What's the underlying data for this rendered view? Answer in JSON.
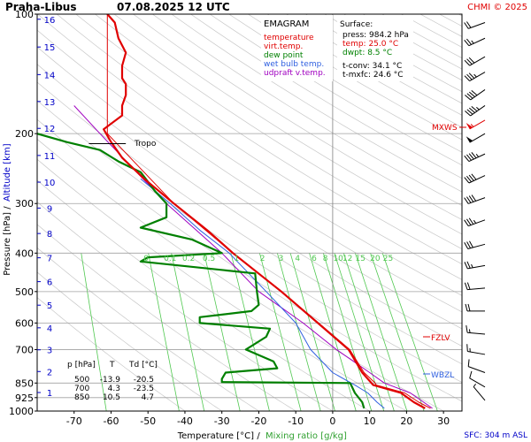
{
  "header": {
    "station": "Praha-Libus",
    "datetime": "07.08.2025 12 UTC",
    "credit": "CHMI © 2025"
  },
  "legend": {
    "title": "EMAGRAM",
    "items": [
      {
        "label": "temperature",
        "color": "#e00000"
      },
      {
        "label": "virt.temp.",
        "color": "#e00000"
      },
      {
        "label": "dew point",
        "color": "#008000"
      },
      {
        "label": "wet bulb temp.",
        "color": "#3060e0"
      },
      {
        "label": "udpraft v.temp.",
        "color": "#a000c0"
      }
    ]
  },
  "surface": {
    "title": "Surface:",
    "press": "press: 984.2 hPa",
    "temp": "temp: 25.0 °C",
    "dwpt": "dwpt: 8.5 °C",
    "tconv": "t-conv: 34.1 °C",
    "tmxfc": "t-mxfc: 24.6 °C"
  },
  "levels_table": {
    "headers": [
      "p [hPa]",
      "T",
      "Td [°C]"
    ],
    "rows": [
      [
        "500",
        "-13.9",
        "-20.5"
      ],
      [
        "700",
        "4.3",
        "-23.5"
      ],
      [
        "850",
        "10.5",
        "4.7"
      ]
    ]
  },
  "markers": {
    "tropo": "Tropo",
    "mxws": "MXWS",
    "fzlv": "FZLV",
    "wbzl": "WBZL"
  },
  "footer": {
    "sfc": "SFC: 304 m ASL"
  },
  "colors": {
    "temperature": "#e00000",
    "dewpoint": "#008000",
    "wetbulb": "#3060e0",
    "parcel": "#a000c0",
    "altitude": "#0000c8",
    "mixing": "#50c850"
  },
  "chart_data": {
    "type": "line",
    "xlabel": "Temperature [°C]",
    "xlabel_sep": "/",
    "xlabel2": "Mixing ratio [g/kg]",
    "ylabel": "Pressure [hPa]",
    "ylabel_sep": "/",
    "ylabel2": "Altitude [km]",
    "xlim": [
      -80,
      35
    ],
    "ylim": [
      1000,
      100
    ],
    "yscale": "log",
    "x_ticks": [
      "-70",
      "-60",
      "-50",
      "-40",
      "-30",
      "-20",
      "-10",
      "0",
      "10",
      "20",
      "30"
    ],
    "x_tick_values": [
      -70,
      -60,
      -50,
      -40,
      -30,
      -20,
      -10,
      0,
      10,
      20,
      30
    ],
    "pressure_ticks": [
      "100",
      "200",
      "300",
      "400",
      "500",
      "600",
      "700",
      "850",
      "925",
      "1000"
    ],
    "pressure_tick_values": [
      100,
      200,
      300,
      400,
      500,
      600,
      700,
      850,
      925,
      1000
    ],
    "altitude_ticks": [
      "1",
      "2",
      "3",
      "4",
      "5",
      "6",
      "7",
      "8",
      "9",
      "10",
      "11",
      "12",
      "13",
      "14",
      "15",
      "16"
    ],
    "altitude_pressures": [
      898,
      795,
      701,
      617,
      541,
      472,
      411,
      357,
      308,
      265,
      227,
      194,
      166,
      142,
      121,
      103
    ],
    "mixing_ratio_labels": [
      "0",
      "0.1",
      "0.2",
      "0.5",
      "1",
      "2",
      "3",
      "4",
      "6",
      "8",
      "10",
      "12",
      "15",
      "20",
      "25"
    ],
    "series": [
      {
        "name": "temperature",
        "points": [
          [
            984,
            25
          ],
          [
            950,
            22
          ],
          [
            900,
            18.5
          ],
          [
            860,
            11
          ],
          [
            850,
            10.5
          ],
          [
            800,
            8
          ],
          [
            700,
            4.3
          ],
          [
            600,
            -4
          ],
          [
            500,
            -13.9
          ],
          [
            400,
            -27
          ],
          [
            350,
            -34
          ],
          [
            300,
            -43
          ],
          [
            260,
            -51
          ],
          [
            230,
            -57
          ],
          [
            210,
            -60
          ],
          [
            195,
            -62
          ],
          [
            180,
            -57
          ],
          [
            170,
            -57
          ],
          [
            160,
            -56
          ],
          [
            150,
            -56
          ],
          [
            145,
            -57
          ],
          [
            135,
            -57
          ],
          [
            125,
            -56
          ],
          [
            115,
            -58
          ],
          [
            105,
            -59
          ],
          [
            100,
            -61
          ]
        ]
      },
      {
        "name": "virt.temp.",
        "points": [
          [
            984,
            26.5
          ],
          [
            950,
            23.3
          ],
          [
            900,
            19.5
          ],
          [
            860,
            11.8
          ],
          [
            850,
            11.5
          ],
          [
            800,
            8.5
          ],
          [
            700,
            4.6
          ],
          [
            600,
            -3.8
          ],
          [
            500,
            -13.8
          ],
          [
            400,
            -27
          ],
          [
            300,
            -43
          ],
          [
            200,
            -61
          ],
          [
            100,
            -61
          ]
        ]
      },
      {
        "name": "dew point",
        "points": [
          [
            984,
            8.5
          ],
          [
            950,
            8
          ],
          [
            900,
            6
          ],
          [
            860,
            5
          ],
          [
            850,
            4.7
          ],
          [
            845,
            -30
          ],
          [
            830,
            -30
          ],
          [
            800,
            -29
          ],
          [
            780,
            -15
          ],
          [
            750,
            -16
          ],
          [
            700,
            -23.5
          ],
          [
            650,
            -18
          ],
          [
            620,
            -17
          ],
          [
            600,
            -36
          ],
          [
            580,
            -36
          ],
          [
            560,
            -22
          ],
          [
            540,
            -20
          ],
          [
            500,
            -20.5
          ],
          [
            450,
            -21
          ],
          [
            420,
            -52
          ],
          [
            410,
            -50
          ],
          [
            400,
            -30
          ],
          [
            370,
            -38
          ],
          [
            345,
            -52
          ],
          [
            325,
            -45
          ],
          [
            300,
            -45
          ],
          [
            280,
            -48
          ],
          [
            250,
            -52
          ],
          [
            235,
            -58
          ],
          [
            220,
            -63
          ],
          [
            210,
            -72
          ],
          [
            200,
            -80
          ]
        ]
      },
      {
        "name": "wet bulb temp.",
        "points": [
          [
            984,
            14
          ],
          [
            950,
            12
          ],
          [
            900,
            9.5
          ],
          [
            860,
            6
          ],
          [
            850,
            5
          ],
          [
            800,
            0
          ],
          [
            700,
            -6
          ],
          [
            600,
            -10
          ],
          [
            500,
            -18
          ],
          [
            400,
            -28
          ],
          [
            350,
            -36
          ],
          [
            300,
            -44
          ],
          [
            260,
            -52
          ]
        ]
      },
      {
        "name": "udpraft v.temp.",
        "points": [
          [
            984,
            27
          ],
          [
            900,
            21
          ],
          [
            850,
            14
          ],
          [
            800,
            10
          ],
          [
            700,
            1
          ],
          [
            600,
            -8
          ],
          [
            500,
            -20
          ],
          [
            400,
            -30
          ],
          [
            300,
            -45
          ],
          [
            200,
            -63
          ],
          [
            170,
            -70
          ]
        ]
      }
    ],
    "annotations": [
      {
        "label": "Tropo",
        "p": 212
      },
      {
        "label": "MXWS",
        "p": 190
      },
      {
        "label": "FZLV",
        "p": 645
      },
      {
        "label": "WBZL",
        "p": 820
      }
    ],
    "wind_barbs": [
      {
        "p": 105,
        "dir": 250,
        "kt": 20
      },
      {
        "p": 115,
        "dir": 245,
        "kt": 25
      },
      {
        "p": 128,
        "dir": 240,
        "kt": 30
      },
      {
        "p": 140,
        "dir": 240,
        "kt": 35
      },
      {
        "p": 155,
        "dir": 235,
        "kt": 40
      },
      {
        "p": 170,
        "dir": 235,
        "kt": 45
      },
      {
        "p": 185,
        "dir": 240,
        "kt": 55
      },
      {
        "p": 200,
        "dir": 240,
        "kt": 50
      },
      {
        "p": 225,
        "dir": 245,
        "kt": 45
      },
      {
        "p": 255,
        "dir": 245,
        "kt": 40
      },
      {
        "p": 290,
        "dir": 250,
        "kt": 40
      },
      {
        "p": 330,
        "dir": 250,
        "kt": 35
      },
      {
        "p": 380,
        "dir": 255,
        "kt": 30
      },
      {
        "p": 430,
        "dir": 260,
        "kt": 25
      },
      {
        "p": 490,
        "dir": 265,
        "kt": 20
      },
      {
        "p": 560,
        "dir": 270,
        "kt": 20
      },
      {
        "p": 640,
        "dir": 275,
        "kt": 15
      },
      {
        "p": 720,
        "dir": 280,
        "kt": 15
      },
      {
        "p": 800,
        "dir": 290,
        "kt": 10
      },
      {
        "p": 870,
        "dir": 300,
        "kt": 10
      },
      {
        "p": 940,
        "dir": 320,
        "kt": 5
      }
    ],
    "grid": true
  }
}
